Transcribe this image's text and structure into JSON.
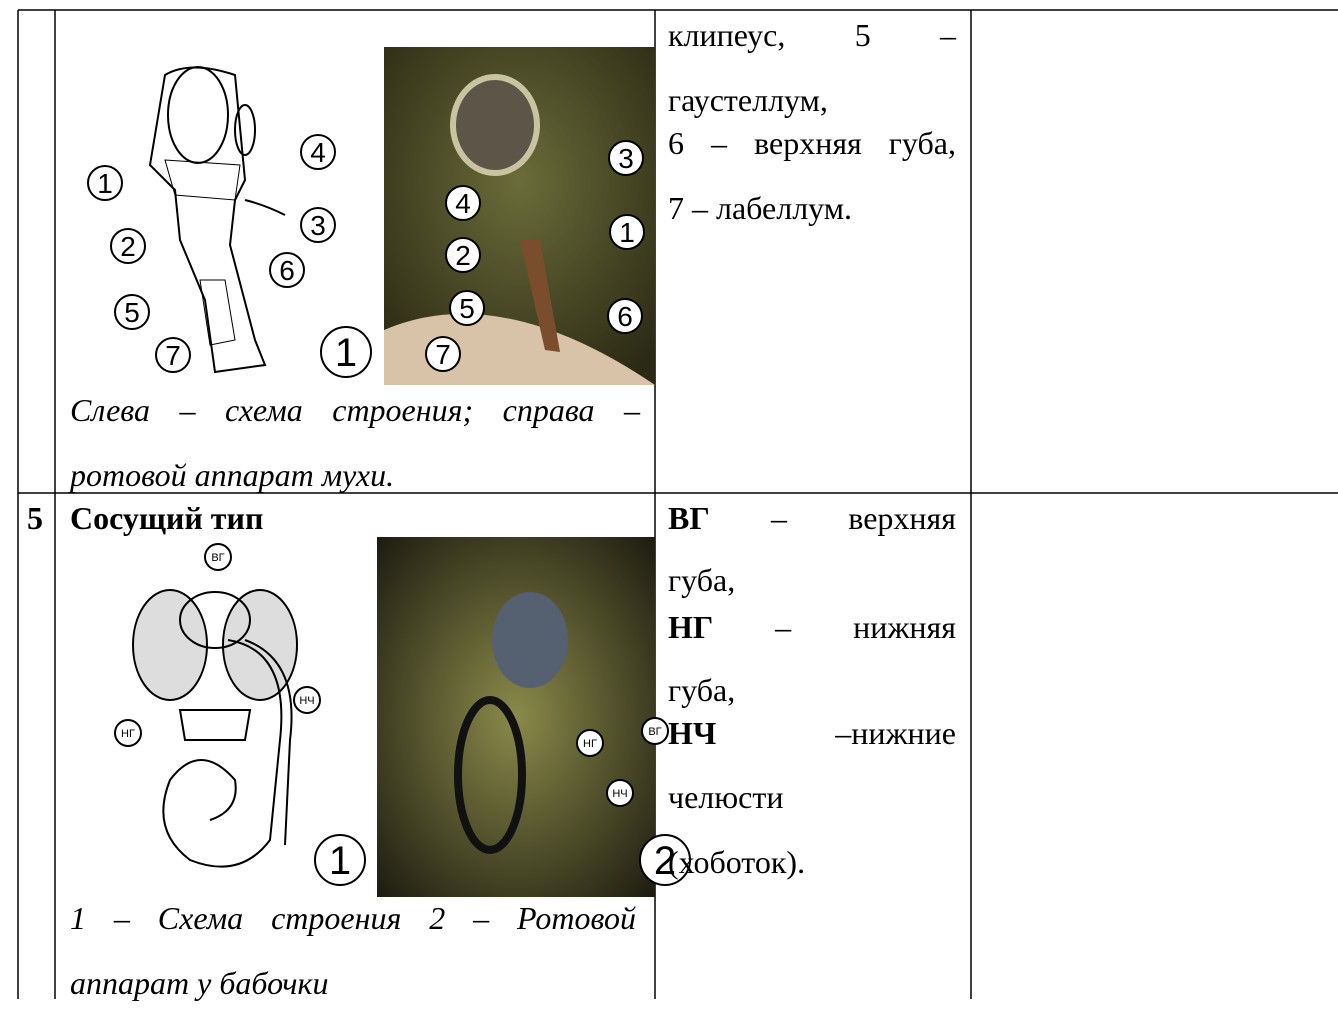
{
  "table": {
    "rows": [
      {
        "diagram_labels": [
          "1",
          "2",
          "3",
          "4",
          "5",
          "6",
          "7"
        ],
        "diagram_number": "1",
        "photo_labels": [
          "3",
          "4",
          "1",
          "2",
          "5",
          "6",
          "7"
        ],
        "caption": "Слева – схема строения; справа – ротовой аппарат мухи.",
        "description": [
          {
            "words": [
              "клипеус,",
              "5",
              "–"
            ]
          },
          {
            "words": [
              "гаустеллум,"
            ]
          },
          {
            "words": [
              "6",
              "–",
              "верхняя",
              "губа,"
            ]
          },
          {
            "words": [
              "7 – лабеллум."
            ]
          }
        ]
      },
      {
        "number": "5",
        "title": "Сосущий тип",
        "diagram_labels": [
          "ВГ",
          "НЧ",
          "НГ"
        ],
        "diagram_number": "1",
        "photo_labels": [
          "НГ",
          "НЧ",
          "ВГ"
        ],
        "photo_number": "2",
        "caption": "1 – Схема строения 2 – Ротовой аппарат у бабочки",
        "description": [
          {
            "words": [
              "ВГ",
              "–",
              "верхняя"
            ],
            "bold_first": true
          },
          {
            "words": [
              "губа,"
            ]
          },
          {
            "words": [
              "НГ",
              "–",
              "нижняя"
            ],
            "bold_first": true
          },
          {
            "words": [
              "губа,"
            ]
          },
          {
            "words": [
              "НЧ",
              "–нижние"
            ],
            "bold_first": true
          },
          {
            "words": [
              "челюсти"
            ]
          },
          {
            "words": [
              "(хоботок)."
            ]
          }
        ]
      }
    ]
  }
}
